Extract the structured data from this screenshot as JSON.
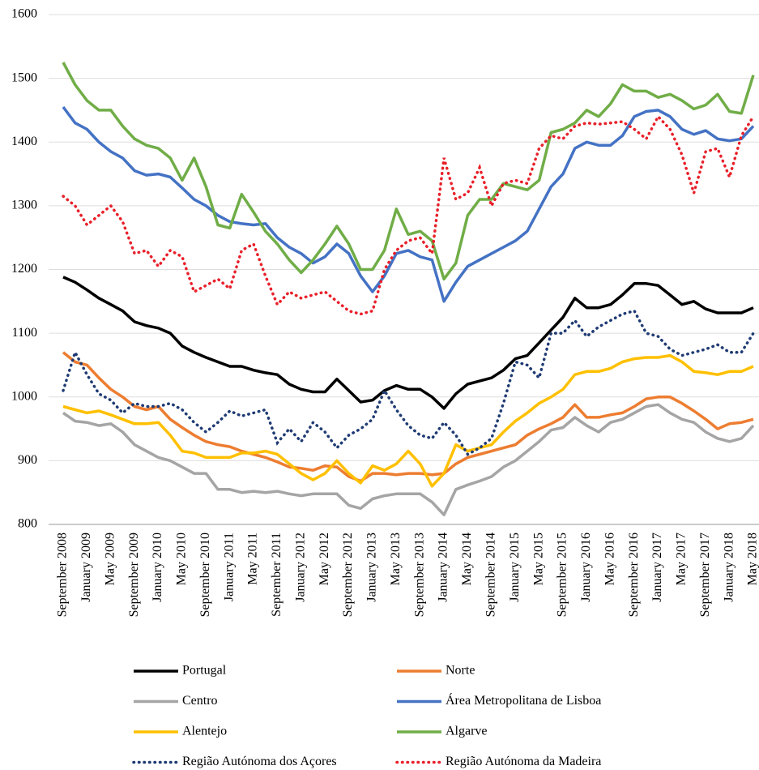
{
  "chart_data": {
    "type": "line",
    "categories": [
      "September 2008",
      null,
      "January 2009",
      null,
      "May 2009",
      null,
      "September 2009",
      null,
      "January 2010",
      null,
      "May 2010",
      null,
      "September 2010",
      null,
      "January 2011",
      null,
      "May 2011",
      null,
      "September 2011",
      null,
      "January 2012",
      null,
      "May 2012",
      null,
      "September 2012",
      null,
      "January 2013",
      null,
      "May 2013",
      null,
      "September 2013",
      null,
      "January 2014",
      null,
      "May 2014",
      null,
      "September 2014",
      null,
      "January 2015",
      null,
      "May 2015",
      null,
      "September 2015",
      null,
      "January 2016",
      null,
      "May 2016",
      null,
      "September 2016",
      null,
      "January 2017",
      null,
      "May 2017",
      null,
      "September 2017",
      null,
      "January 2018",
      null,
      "May 2018"
    ],
    "ylim": [
      800,
      1600
    ],
    "yticks": [
      800,
      900,
      1000,
      1100,
      1200,
      1300,
      1400,
      1500,
      1600
    ],
    "grid": true,
    "series": [
      {
        "name": "Portugal",
        "color": "#000000",
        "dash": "solid",
        "values": [
          1188,
          1180,
          1168,
          1155,
          1145,
          1135,
          1118,
          1112,
          1108,
          1100,
          1080,
          1070,
          1062,
          1055,
          1048,
          1048,
          1042,
          1038,
          1035,
          1020,
          1012,
          1008,
          1008,
          1028,
          1010,
          992,
          995,
          1010,
          1018,
          1012,
          1012,
          1000,
          982,
          1005,
          1020,
          1025,
          1030,
          1042,
          1060,
          1065,
          1085,
          1105,
          1125,
          1155,
          1140,
          1140,
          1145,
          1160,
          1178,
          1178,
          1175,
          1160,
          1145,
          1150,
          1138,
          1132,
          1132,
          1132,
          1140
        ]
      },
      {
        "name": "Norte",
        "color": "#ed7d31",
        "dash": "solid",
        "values": [
          1070,
          1055,
          1050,
          1030,
          1012,
          1000,
          985,
          980,
          985,
          965,
          952,
          940,
          930,
          925,
          922,
          915,
          910,
          905,
          898,
          890,
          888,
          885,
          892,
          890,
          875,
          868,
          880,
          880,
          878,
          880,
          880,
          878,
          880,
          895,
          905,
          910,
          915,
          920,
          925,
          940,
          950,
          958,
          968,
          988,
          968,
          968,
          972,
          975,
          985,
          997,
          1000,
          1000,
          990,
          978,
          965,
          950,
          958,
          960,
          965
        ]
      },
      {
        "name": "Centro",
        "color": "#a5a5a5",
        "dash": "solid",
        "values": [
          975,
          962,
          960,
          955,
          958,
          945,
          925,
          915,
          905,
          900,
          890,
          880,
          880,
          855,
          855,
          850,
          852,
          850,
          852,
          848,
          845,
          848,
          848,
          848,
          830,
          825,
          840,
          845,
          848,
          848,
          848,
          835,
          815,
          855,
          862,
          868,
          875,
          890,
          900,
          915,
          930,
          948,
          952,
          968,
          955,
          945,
          960,
          965,
          975,
          985,
          988,
          975,
          965,
          960,
          945,
          935,
          930,
          935,
          955
        ]
      },
      {
        "name": "Área Metropolitana de Lisboa",
        "color": "#4472c4",
        "dash": "solid",
        "values": [
          1455,
          1430,
          1420,
          1400,
          1385,
          1375,
          1355,
          1348,
          1350,
          1345,
          1328,
          1310,
          1300,
          1285,
          1275,
          1272,
          1270,
          1272,
          1250,
          1235,
          1225,
          1210,
          1220,
          1240,
          1225,
          1190,
          1165,
          1190,
          1225,
          1230,
          1220,
          1215,
          1150,
          1180,
          1205,
          1215,
          1225,
          1235,
          1245,
          1260,
          1295,
          1330,
          1350,
          1390,
          1400,
          1395,
          1395,
          1410,
          1440,
          1448,
          1450,
          1440,
          1420,
          1412,
          1418,
          1405,
          1402,
          1405,
          1425
        ]
      },
      {
        "name": "Alentejo",
        "color": "#ffc000",
        "dash": "solid",
        "values": [
          985,
          980,
          975,
          978,
          972,
          965,
          958,
          958,
          960,
          940,
          915,
          912,
          905,
          905,
          905,
          912,
          912,
          915,
          910,
          895,
          880,
          870,
          880,
          900,
          880,
          865,
          892,
          885,
          895,
          915,
          895,
          860,
          880,
          925,
          915,
          920,
          925,
          945,
          962,
          975,
          990,
          1000,
          1012,
          1035,
          1040,
          1040,
          1045,
          1055,
          1060,
          1062,
          1062,
          1065,
          1055,
          1040,
          1038,
          1035,
          1040,
          1040,
          1048
        ]
      },
      {
        "name": "Algarve",
        "color": "#70ad47",
        "dash": "solid",
        "values": [
          1525,
          1490,
          1465,
          1450,
          1450,
          1425,
          1405,
          1395,
          1390,
          1375,
          1340,
          1375,
          1330,
          1270,
          1265,
          1318,
          1290,
          1260,
          1240,
          1215,
          1195,
          1215,
          1240,
          1268,
          1240,
          1200,
          1200,
          1230,
          1295,
          1255,
          1260,
          1245,
          1185,
          1210,
          1285,
          1310,
          1310,
          1335,
          1330,
          1325,
          1340,
          1415,
          1420,
          1430,
          1450,
          1440,
          1460,
          1490,
          1480,
          1480,
          1470,
          1475,
          1465,
          1452,
          1458,
          1475,
          1448,
          1445,
          1505
        ]
      },
      {
        "name": "Região Autónoma dos Açores",
        "color": "#1f3b73",
        "dash": "dotted",
        "values": [
          1010,
          1070,
          1035,
          1005,
          995,
          975,
          990,
          985,
          985,
          990,
          980,
          960,
          945,
          960,
          978,
          970,
          975,
          980,
          928,
          950,
          930,
          960,
          945,
          920,
          940,
          950,
          965,
          1010,
          980,
          955,
          940,
          935,
          960,
          940,
          910,
          920,
          935,
          990,
          1055,
          1050,
          1030,
          1100,
          1100,
          1120,
          1095,
          1110,
          1120,
          1130,
          1135,
          1100,
          1095,
          1075,
          1065,
          1070,
          1075,
          1082,
          1070,
          1070,
          1100
        ]
      },
      {
        "name": "Região Autónoma da Madeira",
        "color": "#e8202a",
        "dash": "dotted",
        "values": [
          1315,
          1300,
          1270,
          1285,
          1300,
          1275,
          1225,
          1230,
          1205,
          1230,
          1220,
          1165,
          1175,
          1185,
          1170,
          1230,
          1240,
          1190,
          1145,
          1165,
          1155,
          1160,
          1165,
          1150,
          1135,
          1130,
          1135,
          1200,
          1230,
          1245,
          1250,
          1225,
          1375,
          1310,
          1320,
          1360,
          1300,
          1335,
          1340,
          1335,
          1390,
          1410,
          1405,
          1425,
          1430,
          1428,
          1430,
          1432,
          1420,
          1405,
          1440,
          1420,
          1380,
          1320,
          1385,
          1390,
          1345,
          1410,
          1440
        ]
      }
    ]
  }
}
